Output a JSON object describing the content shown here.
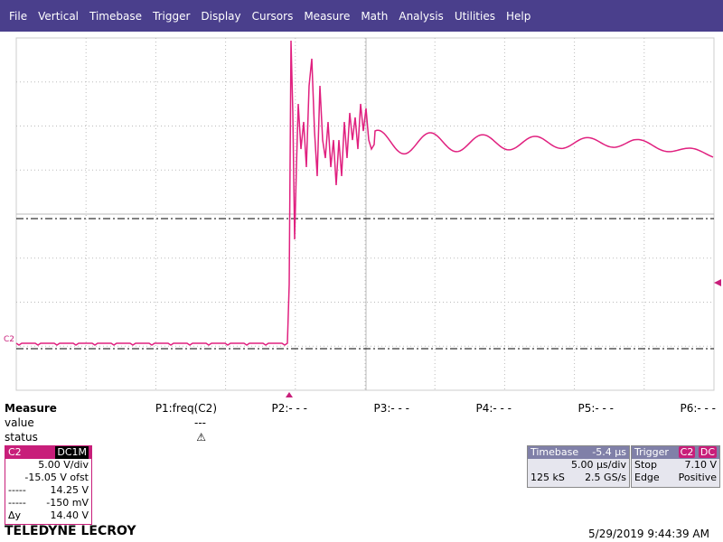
{
  "menu": [
    "File",
    "Vertical",
    "Timebase",
    "Trigger",
    "Display",
    "Cursors",
    "Measure",
    "Math",
    "Analysis",
    "Utilities",
    "Help"
  ],
  "trace_label": "C2",
  "measure": {
    "title": "Measure",
    "params": [
      "P1:freq(C2)",
      "P2:- - -",
      "P3:- - -",
      "P4:- - -",
      "P5:- - -",
      "P6:- - -"
    ],
    "rows": [
      {
        "label": "value",
        "p1": "---"
      },
      {
        "label": "status",
        "p1": "⚠"
      }
    ]
  },
  "channel": {
    "name": "C2",
    "coupling": "DC1M",
    "scale": "5.00 V/div",
    "offset": "-15.05 V ofst",
    "cursors": [
      [
        "-----",
        "14.25 V"
      ],
      [
        "-----",
        "-150 mV"
      ],
      [
        "Δy",
        "14.40 V"
      ]
    ]
  },
  "timebase": {
    "title": "Timebase",
    "delay": "-5.4 µs",
    "scale": "5.00 µs/div",
    "samples": "125 kS",
    "rate": "2.5 GS/s"
  },
  "trigger": {
    "title": "Trigger",
    "source": "C2",
    "coupling": "DC",
    "mode": "Stop",
    "level": "7.10 V",
    "type": "Edge",
    "slope": "Positive"
  },
  "footer": {
    "brand": "TELEDYNE LECROY",
    "timestamp": "5/29/2019 9:44:39 AM"
  }
}
